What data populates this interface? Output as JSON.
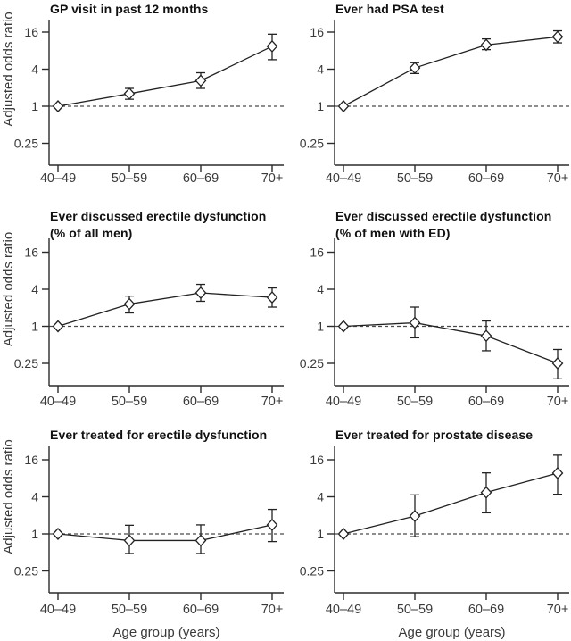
{
  "figure": {
    "background": "#ffffff",
    "description": "Six-panel forest-style line plots of adjusted odds ratios by age group"
  },
  "colors": {
    "series_line": "#222222",
    "marker_stroke": "#222222",
    "marker_fill": "#ffffff",
    "reference_line": "#4a4a4a",
    "axis": "#2b2b2b",
    "tick_text": "#3a3a3a",
    "title_text": "#111111"
  },
  "axis_labels": {
    "y": "Adjusted odds ratio",
    "x": "Age group (years)"
  },
  "chart_data": [
    {
      "type": "line",
      "title": "GP visit in past 12 months",
      "subtitle": "",
      "categories": [
        "40–49",
        "50–59",
        "60–69",
        "70+"
      ],
      "yticks": [
        16,
        4,
        1,
        0.25
      ],
      "yscale": "log",
      "reference_line": 1,
      "values": [
        1.0,
        1.6,
        2.6,
        9.4
      ],
      "ci_low": [
        null,
        1.3,
        1.95,
        5.7
      ],
      "ci_high": [
        null,
        1.95,
        3.5,
        14.8
      ],
      "ylabel": "Adjusted odds ratio",
      "xlabel": ""
    },
    {
      "type": "line",
      "title": "Ever had PSA test",
      "subtitle": "",
      "categories": [
        "40–49",
        "50–59",
        "60–69",
        "70+"
      ],
      "yticks": [
        16,
        4,
        1,
        0.25
      ],
      "yscale": "log",
      "reference_line": 1,
      "values": [
        1.0,
        4.2,
        9.9,
        13.4
      ],
      "ci_low": [
        null,
        3.4,
        8.3,
        10.7
      ],
      "ci_high": [
        null,
        5.1,
        12.4,
        16.8
      ],
      "ylabel": "",
      "xlabel": ""
    },
    {
      "type": "line",
      "title": "Ever discussed erectile dysfunction",
      "subtitle": "(% of all men)",
      "categories": [
        "40–49",
        "50–59",
        "60–69",
        "70+"
      ],
      "yticks": [
        16,
        4,
        1,
        0.25
      ],
      "yscale": "log",
      "reference_line": 1,
      "values": [
        1.0,
        2.3,
        3.5,
        2.95
      ],
      "ci_low": [
        null,
        1.65,
        2.55,
        2.05
      ],
      "ci_high": [
        null,
        3.1,
        4.8,
        4.2
      ],
      "ylabel": "Adjusted odds ratio",
      "xlabel": ""
    },
    {
      "type": "line",
      "title": "Ever discussed erectile dysfunction",
      "subtitle": "(% of men with ED)",
      "categories": [
        "40–49",
        "50–59",
        "60–69",
        "70+"
      ],
      "yticks": [
        16,
        4,
        1,
        0.25
      ],
      "yscale": "log",
      "reference_line": 1,
      "values": [
        1.0,
        1.14,
        0.7,
        0.25
      ],
      "ci_low": [
        null,
        0.65,
        0.4,
        0.14
      ],
      "ci_high": [
        null,
        2.05,
        1.22,
        0.42
      ],
      "ylabel": "",
      "xlabel": ""
    },
    {
      "type": "line",
      "title": "Ever treated for erectile dysfunction",
      "subtitle": "",
      "categories": [
        "40–49",
        "50–59",
        "60–69",
        "70+"
      ],
      "yticks": [
        16,
        4,
        1,
        0.25
      ],
      "yscale": "log",
      "reference_line": 1,
      "values": [
        1.0,
        0.78,
        0.78,
        1.4
      ],
      "ci_low": [
        null,
        0.48,
        0.48,
        0.75
      ],
      "ci_high": [
        null,
        1.38,
        1.4,
        2.5
      ],
      "ylabel": "Adjusted odds ratio",
      "xlabel": "Age group (years)"
    },
    {
      "type": "line",
      "title": "Ever treated for prostate disease",
      "subtitle": "",
      "categories": [
        "40–49",
        "50–59",
        "60–69",
        "70+"
      ],
      "yticks": [
        16,
        4,
        1,
        0.25
      ],
      "yscale": "log",
      "reference_line": 1,
      "values": [
        1.0,
        1.95,
        4.7,
        9.7
      ],
      "ci_low": [
        null,
        0.9,
        2.2,
        4.4
      ],
      "ci_high": [
        null,
        4.3,
        9.8,
        19.0
      ],
      "ylabel": "",
      "xlabel": "Age group (years)"
    }
  ]
}
